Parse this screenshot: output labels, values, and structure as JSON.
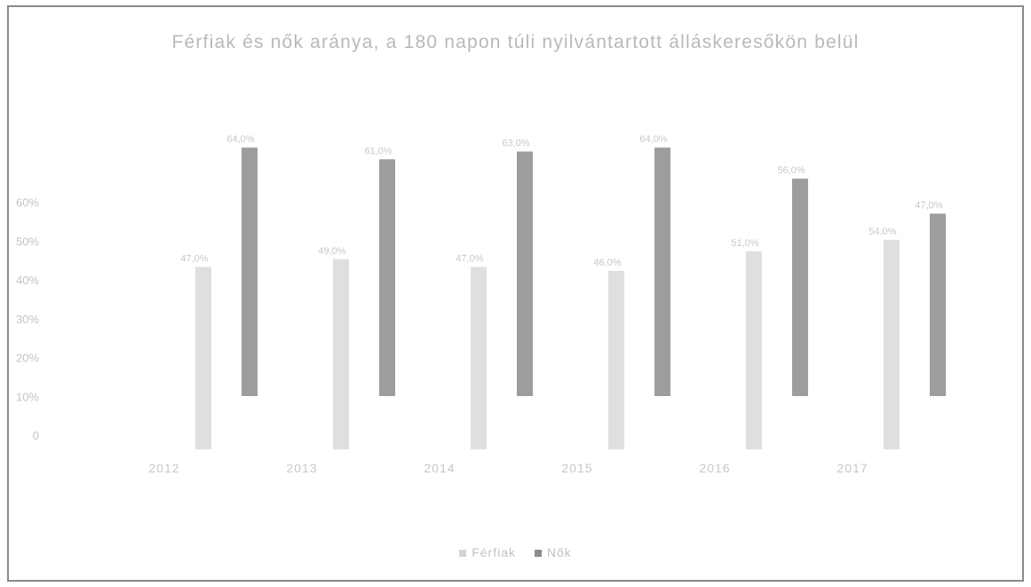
{
  "chart_data": {
    "type": "bar",
    "title": "Férfiak és nők aránya, a 180 napon túli nyilvántartott álláskeresőkön belül",
    "categories": [
      "2012",
      "2013",
      "2014",
      "2015",
      "2016",
      "2017"
    ],
    "y_tick_labels": [
      "0",
      "10%",
      "20%",
      "30%",
      "40%",
      "50%",
      "60%"
    ],
    "ylim": [
      0,
      0.7
    ],
    "series": [
      {
        "name": "Férfiak",
        "color": "#d4d4d4",
        "values": [
          0.47,
          0.49,
          0.47,
          0.46,
          0.51,
          0.54
        ]
      },
      {
        "name": "Nők",
        "color": "#8c8c8c",
        "values": [
          0.64,
          0.61,
          0.63,
          0.64,
          0.56,
          0.47
        ]
      }
    ],
    "legend_position": "bottom",
    "grid": false
  }
}
